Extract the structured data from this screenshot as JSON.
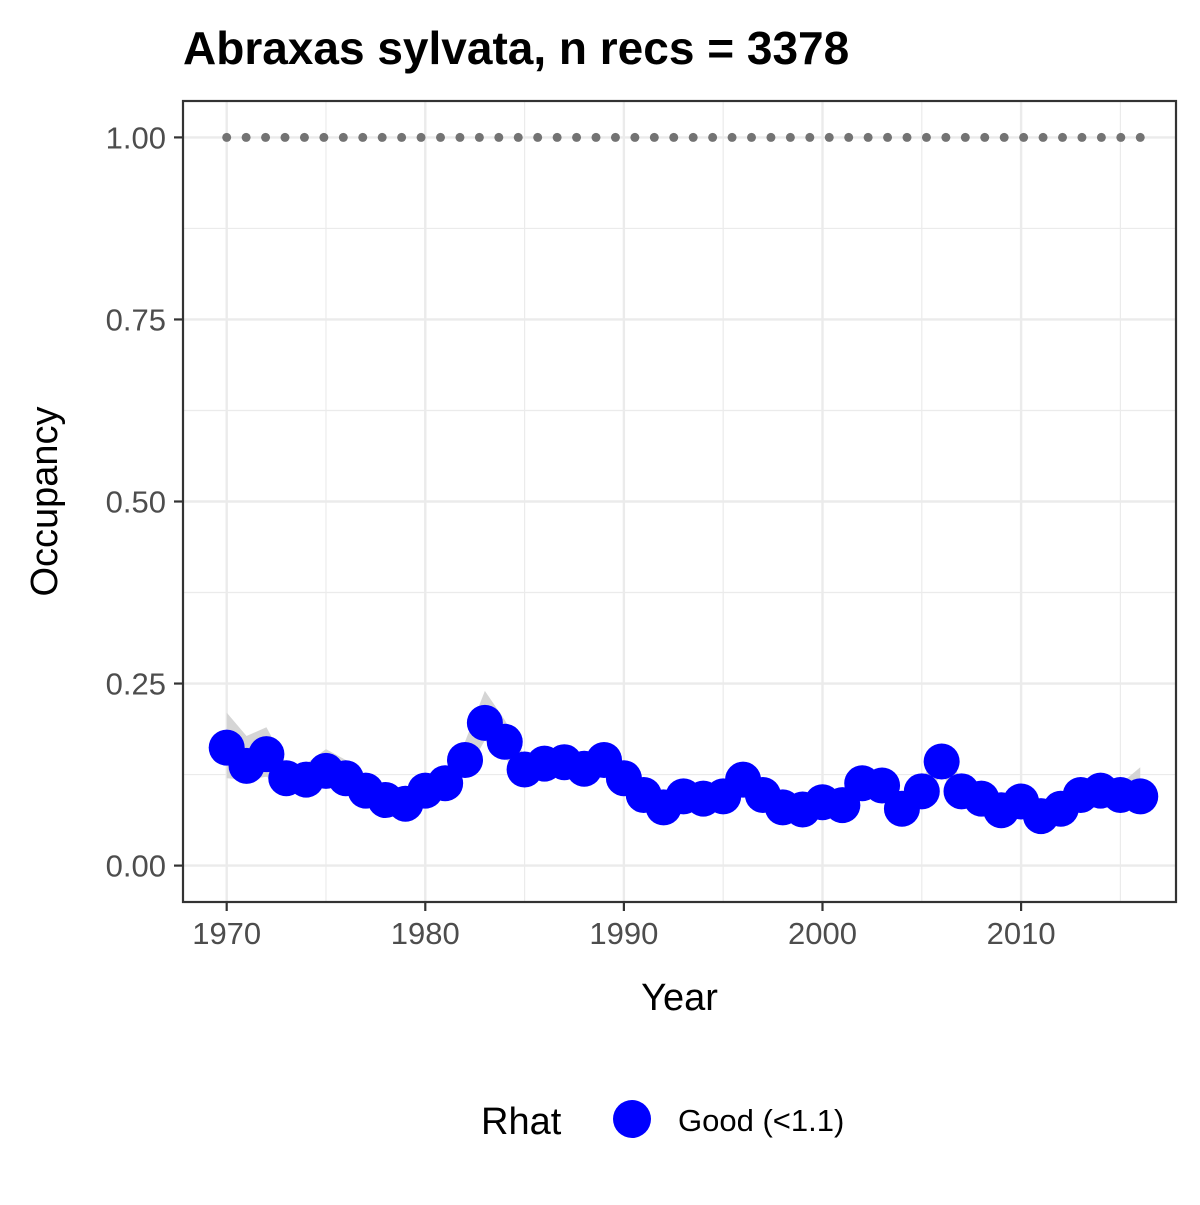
{
  "chart_data": {
    "type": "line",
    "title": "Abraxas sylvata, n recs = 3378",
    "xlabel": "Year",
    "ylabel": "Occupancy",
    "xlim": [
      1967.8,
      2017.8
    ],
    "ylim": [
      -0.05,
      1.05
    ],
    "x_ticks": [
      1970,
      1980,
      1990,
      2000,
      2010
    ],
    "x_tick_labels": [
      "1970",
      "1980",
      "1990",
      "2000",
      "2010"
    ],
    "y_ticks": [
      0.0,
      0.25,
      0.5,
      0.75,
      1.0
    ],
    "y_tick_labels": [
      "0.00",
      "0.25",
      "0.50",
      "0.75",
      "1.00"
    ],
    "grid": true,
    "legend": {
      "position": "bottom",
      "title": "Rhat",
      "entries": [
        {
          "label": "Good (<1.1)",
          "color": "#0000ff"
        }
      ]
    },
    "colors": {
      "points": "#0000ff",
      "ribbon": "#d3d3d3",
      "reference_line": "#737373",
      "grid": "#ebebeb",
      "panel_border": "#333333"
    },
    "reference_line": {
      "y": 1.0,
      "style": "dotted"
    },
    "series": [
      {
        "name": "Good (<1.1)",
        "x": [
          1970,
          1971,
          1972,
          1973,
          1974,
          1975,
          1976,
          1977,
          1978,
          1979,
          1980,
          1981,
          1982,
          1983,
          1984,
          1985,
          1986,
          1987,
          1988,
          1989,
          1990,
          1991,
          1992,
          1993,
          1994,
          1995,
          1996,
          1997,
          1998,
          1999,
          2000,
          2001,
          2002,
          2003,
          2004,
          2005,
          2006,
          2007,
          2008,
          2009,
          2010,
          2011,
          2012,
          2013,
          2014,
          2015,
          2016
        ],
        "y": [
          0.162,
          0.137,
          0.153,
          0.12,
          0.118,
          0.13,
          0.12,
          0.103,
          0.09,
          0.085,
          0.103,
          0.113,
          0.145,
          0.196,
          0.17,
          0.132,
          0.14,
          0.142,
          0.133,
          0.145,
          0.12,
          0.097,
          0.08,
          0.095,
          0.092,
          0.095,
          0.118,
          0.097,
          0.08,
          0.077,
          0.087,
          0.083,
          0.113,
          0.11,
          0.078,
          0.102,
          0.143,
          0.102,
          0.092,
          0.076,
          0.088,
          0.068,
          0.078,
          0.097,
          0.103,
          0.097,
          0.095
        ],
        "lower": [
          0.12,
          0.118,
          0.122,
          0.108,
          0.105,
          0.112,
          0.105,
          0.092,
          0.08,
          0.076,
          0.09,
          0.098,
          0.125,
          0.172,
          0.148,
          0.118,
          0.125,
          0.128,
          0.12,
          0.128,
          0.105,
          0.085,
          0.07,
          0.084,
          0.082,
          0.084,
          0.103,
          0.086,
          0.07,
          0.068,
          0.077,
          0.073,
          0.099,
          0.097,
          0.068,
          0.089,
          0.125,
          0.089,
          0.081,
          0.066,
          0.077,
          0.059,
          0.068,
          0.085,
          0.09,
          0.085,
          0.08
        ],
        "upper": [
          0.21,
          0.178,
          0.19,
          0.14,
          0.14,
          0.16,
          0.145,
          0.12,
          0.1,
          0.096,
          0.12,
          0.13,
          0.17,
          0.24,
          0.2,
          0.15,
          0.158,
          0.16,
          0.15,
          0.165,
          0.138,
          0.112,
          0.092,
          0.108,
          0.105,
          0.108,
          0.135,
          0.11,
          0.092,
          0.088,
          0.1,
          0.095,
          0.13,
          0.125,
          0.09,
          0.118,
          0.165,
          0.118,
          0.105,
          0.088,
          0.1,
          0.08,
          0.09,
          0.112,
          0.118,
          0.112,
          0.135
        ]
      }
    ]
  }
}
